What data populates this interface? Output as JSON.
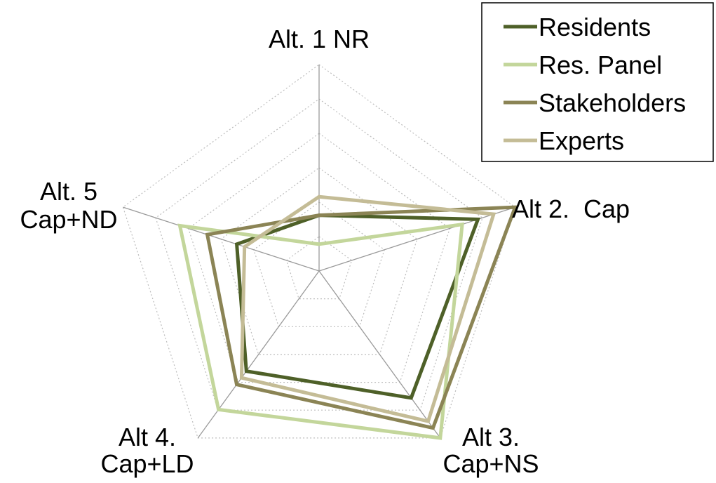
{
  "chart_data": {
    "type": "radar",
    "axes": [
      [
        "Alt. 1 NR"
      ],
      [
        "Alt 2.  Cap"
      ],
      [
        "Alt 3.",
        "Cap+NS"
      ],
      [
        "Alt 4.",
        "Cap+LD"
      ],
      [
        "Alt. 5",
        "Cap+ND"
      ]
    ],
    "range": [
      0,
      1
    ],
    "gridlines": true,
    "legend_position": "top-right",
    "series": [
      {
        "name": "Residents",
        "color": "#4e6028",
        "values": [
          0.27,
          0.81,
          0.76,
          0.6,
          0.42
        ]
      },
      {
        "name": "Res. Panel",
        "color": "#c3d69b",
        "values": [
          0.13,
          0.73,
          1.0,
          0.83,
          0.71
        ]
      },
      {
        "name": "Stakeholders",
        "color": "#8b8455",
        "values": [
          0.27,
          1.0,
          0.94,
          0.68,
          0.57
        ]
      },
      {
        "name": "Experts",
        "color": "#c4bc96",
        "values": [
          0.36,
          0.89,
          0.9,
          0.64,
          0.38
        ]
      }
    ]
  }
}
